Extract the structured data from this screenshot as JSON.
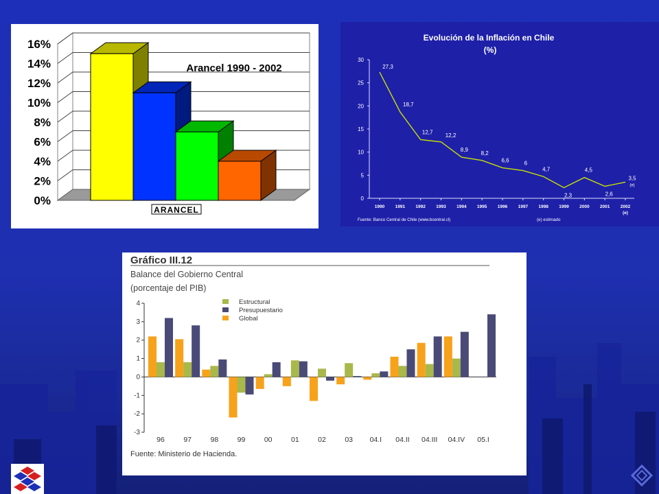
{
  "slide": {
    "background": "#1e2fb0",
    "logo": "chile-government-logo",
    "corner_icon": "diamond-navigation-icon"
  },
  "chart_data": [
    {
      "type": "bar",
      "style": "3d",
      "title": "Arancel 1990 - 2002",
      "xlabel": "ARANCEL",
      "ylabel": "",
      "yticks": [
        "0%",
        "2%",
        "4%",
        "6%",
        "8%",
        "10%",
        "12%",
        "14%",
        "16%"
      ],
      "ylim": [
        0,
        16
      ],
      "categories": [
        "",
        "",
        "",
        ""
      ],
      "values": [
        15,
        11,
        7,
        4
      ],
      "colors": [
        "#ffff00",
        "#0033ff",
        "#00ff00",
        "#ff6600"
      ],
      "grid": true
    },
    {
      "type": "line",
      "title": "Evolución de la Inflación en Chile",
      "subtitle": "(%)",
      "x": [
        "1990",
        "1991",
        "1992",
        "1993",
        "1994",
        "1995",
        "1996",
        "1997",
        "1998",
        "1999",
        "2000",
        "2001",
        "2002"
      ],
      "x_notes": {
        "2002": "(e)"
      },
      "values": [
        27.3,
        18.7,
        12.7,
        12.2,
        8.9,
        8.2,
        6.6,
        6,
        4.7,
        2.3,
        4.5,
        2.6,
        3.5
      ],
      "data_labels": [
        "27,3",
        "18,7",
        "12,7",
        "12,2",
        "8,9",
        "8,2",
        "6,6",
        "6",
        "4,7",
        "2,3",
        "4,5",
        "2,6",
        "3,5"
      ],
      "end_label_note": "(e)",
      "yticks": [
        "0",
        "5",
        "10",
        "15",
        "20",
        "25",
        "30"
      ],
      "ylim": [
        0,
        30
      ],
      "line_color": "#c8e000",
      "footer_left": "Fuente: Banco Central de Chile (www.bcentral.cl)",
      "footer_right": "(e) estimado"
    },
    {
      "type": "bar",
      "header": "Gráfico III.12",
      "title": "Balance del Gobierno Central",
      "subtitle": "(porcentaje del PIB)",
      "categories": [
        "96",
        "97",
        "98",
        "99",
        "00",
        "01",
        "02",
        "03",
        "04.I",
        "04.II",
        "04.III",
        "04.IV",
        "05.I"
      ],
      "series": [
        {
          "name": "Global",
          "color": "#f7a21b",
          "values": [
            2.2,
            2.05,
            0.4,
            -2.2,
            -0.65,
            -0.5,
            -1.3,
            -0.4,
            -0.15,
            1.1,
            1.85,
            2.2,
            null
          ]
        },
        {
          "name": "Estructural",
          "color": "#a9b84a",
          "values": [
            0.8,
            0.8,
            0.6,
            -0.85,
            0.15,
            0.9,
            0.45,
            0.75,
            0.2,
            0.6,
            0.7,
            1.0,
            null
          ]
        },
        {
          "name": "Presupuestario",
          "color": "#4a4a78",
          "values": [
            3.2,
            2.8,
            0.95,
            -0.95,
            0.8,
            0.85,
            -0.2,
            0.05,
            0.3,
            1.5,
            2.2,
            2.45,
            3.4
          ]
        }
      ],
      "legend_order": [
        "Estructural",
        "Presupuestario",
        "Global"
      ],
      "yticks": [
        "4",
        "3",
        "2",
        "1",
        "0",
        "-1",
        "-2",
        "-3"
      ],
      "ylim": [
        -3,
        4
      ],
      "source": "Fuente: Ministerio de Hacienda."
    }
  ]
}
